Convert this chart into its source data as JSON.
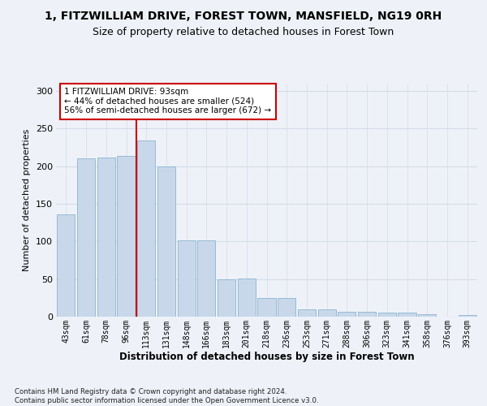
{
  "title1": "1, FITZWILLIAM DRIVE, FOREST TOWN, MANSFIELD, NG19 0RH",
  "title2": "Size of property relative to detached houses in Forest Town",
  "xlabel": "Distribution of detached houses by size in Forest Town",
  "ylabel": "Number of detached properties",
  "categories": [
    "43sqm",
    "61sqm",
    "78sqm",
    "96sqm",
    "113sqm",
    "131sqm",
    "148sqm",
    "166sqm",
    "183sqm",
    "201sqm",
    "218sqm",
    "236sqm",
    "253sqm",
    "271sqm",
    "288sqm",
    "306sqm",
    "323sqm",
    "341sqm",
    "358sqm",
    "376sqm",
    "393sqm"
  ],
  "values": [
    136,
    210,
    211,
    214,
    234,
    200,
    101,
    101,
    50,
    51,
    25,
    25,
    10,
    10,
    7,
    7,
    5,
    5,
    3,
    0,
    2
  ],
  "bar_color": "#c8d8ea",
  "bar_edge_color": "#8ab4d0",
  "grid_color": "#d4dce8",
  "vline_color": "#cc0000",
  "vline_index": 3.5,
  "annotation_text": "1 FITZWILLIAM DRIVE: 93sqm\n← 44% of detached houses are smaller (524)\n56% of semi-detached houses are larger (672) →",
  "annotation_box_color": "#ffffff",
  "annotation_box_edge": "#cc0000",
  "footnote": "Contains HM Land Registry data © Crown copyright and database right 2024.\nContains public sector information licensed under the Open Government Licence v3.0.",
  "ylim": [
    0,
    310
  ],
  "title1_fontsize": 10,
  "title2_fontsize": 9,
  "ylabel_fontsize": 8,
  "tick_fontsize": 7,
  "bg_color": "#eef2f8"
}
